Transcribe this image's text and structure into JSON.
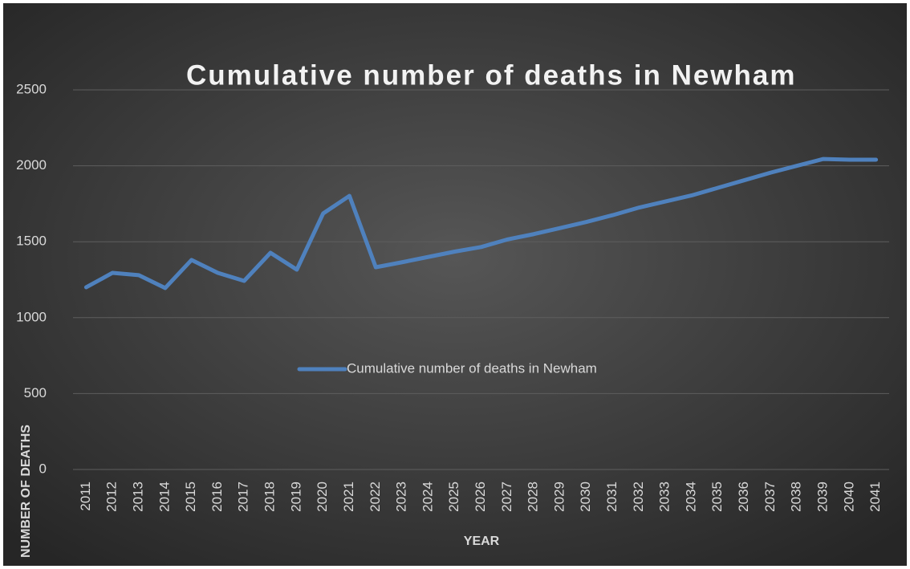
{
  "chart_data": {
    "type": "line",
    "title": "Cumulative number of deaths in Newham",
    "x_label": "YEAR",
    "y_label": "NUMBER OF DEATHS",
    "categories": [
      "2011",
      "2012",
      "2013",
      "2014",
      "2015",
      "2016",
      "2017",
      "2018",
      "2019",
      "2020",
      "2021",
      "2022",
      "2023",
      "2024",
      "2025",
      "2026",
      "2027",
      "2028",
      "2029",
      "2030",
      "2031",
      "2032",
      "2033",
      "2034",
      "2035",
      "2036",
      "2037",
      "2038",
      "2039",
      "2040",
      "2041"
    ],
    "series": [
      {
        "name": "Cumulative number of deaths in Newham",
        "color": "#4f81bd",
        "values": [
          1200,
          1295,
          1280,
          1195,
          1380,
          1295,
          1242,
          1427,
          1316,
          1686,
          1802,
          1332,
          1365,
          1400,
          1435,
          1465,
          1515,
          1550,
          1590,
          1630,
          1675,
          1725,
          1765,
          1805,
          1855,
          1905,
          1955,
          2000,
          2045,
          2040,
          2040
        ]
      }
    ],
    "ylim": [
      0,
      2500
    ],
    "yticks": [
      0,
      500,
      1000,
      1500,
      2000,
      2500
    ],
    "grid": true,
    "legend": "center"
  }
}
